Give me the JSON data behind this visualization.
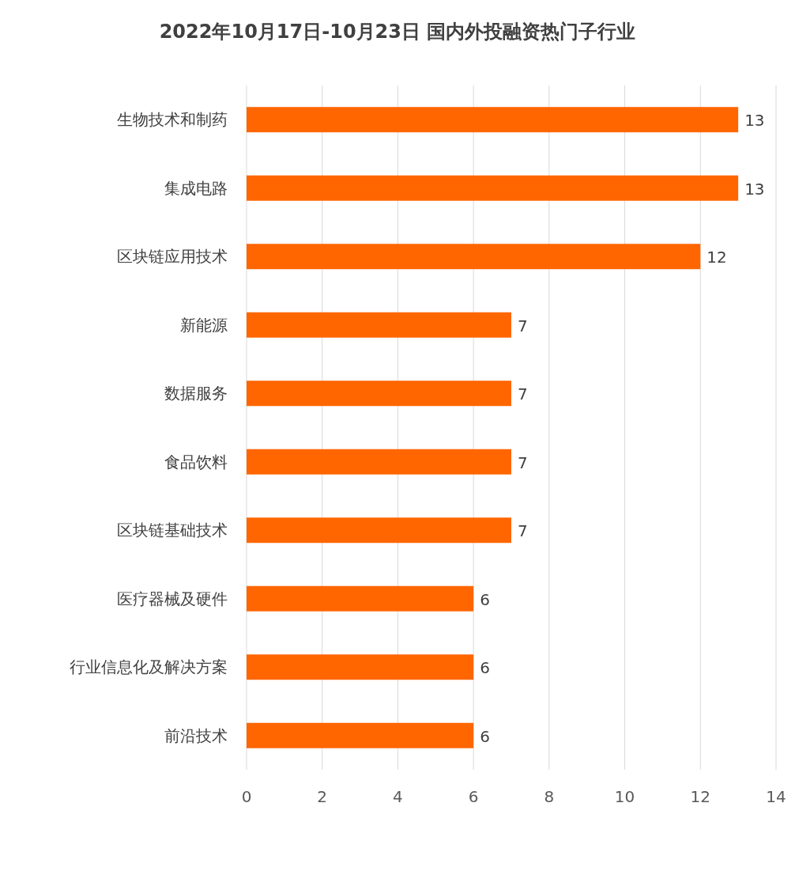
{
  "chart_data": {
    "type": "bar",
    "orientation": "horizontal",
    "title": "2022年10月17日-10月23日 国内外投融资热门子行业",
    "categories": [
      "生物技术和制药",
      "集成电路",
      "区块链应用技术",
      "新能源",
      "数据服务",
      "食品饮料",
      "区块链基础技术",
      "医疗器械及硬件",
      "行业信息化及解决方案",
      "前沿技术"
    ],
    "values": [
      13,
      13,
      12,
      7,
      7,
      7,
      7,
      6,
      6,
      6
    ],
    "color": "#ff6600",
    "xlim": [
      0,
      14
    ],
    "xticks": [
      0,
      2,
      4,
      6,
      8,
      10,
      12,
      14
    ],
    "grid": "x",
    "data_labels": true
  }
}
